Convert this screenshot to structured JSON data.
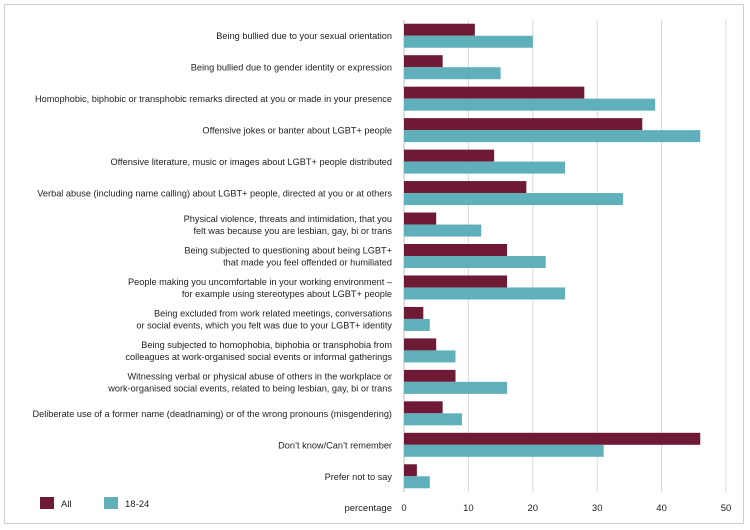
{
  "chart_data": {
    "type": "bar",
    "orientation": "horizontal",
    "categories": [
      [
        "Being bullied due to your sexual orientation"
      ],
      [
        "Being bullied due to gender identity or expression"
      ],
      [
        "Homophobic, biphobic or transphobic remarks directed at you or made in your presence"
      ],
      [
        "Offensive jokes or banter about LGBT+ people"
      ],
      [
        "Offensive literature, music or images about LGBT+ people distributed"
      ],
      [
        "Verbal abuse (including name calling) about LGBT+ people, directed at you or at others"
      ],
      [
        "Physical violence, threats and intimidation, that you",
        "felt was because you are lesbian, gay, bi or trans"
      ],
      [
        "Being subjected to questioning about being LGBT+",
        "that made you feel offended or humiliated"
      ],
      [
        "People making you uncomfortable in your working environment –",
        "for example using stereotypes about LGBT+ people"
      ],
      [
        "Being excluded from work related meetings, conversations",
        "or social events, which you felt was due to your LGBT+ identity"
      ],
      [
        "Being subjected to homophobia, biphobia or transphobia from",
        "colleagues at work-organised social events or informal gatherings"
      ],
      [
        "Witnessing verbal or physical abuse of others in the workplace or",
        "work-organised social events, related to being lesbian, gay, bi or trans"
      ],
      [
        "Deliberate use of a former name (deadnaming) or of the wrong pronouns (misgendering)"
      ],
      [
        "Don’t know/Can’t remember"
      ],
      [
        "Prefer not to say"
      ]
    ],
    "series": [
      {
        "name": "All",
        "color": "#6e1a35",
        "values": [
          11,
          6,
          28,
          37,
          14,
          19,
          5,
          16,
          16,
          3,
          5,
          8,
          6,
          46,
          2
        ]
      },
      {
        "name": "18-24",
        "color": "#5fb0bb",
        "values": [
          20,
          15,
          39,
          46,
          25,
          34,
          12,
          22,
          25,
          4,
          8,
          16,
          9,
          31,
          4
        ]
      }
    ],
    "xlabel": "percentage",
    "xlim": [
      0,
      50
    ],
    "xticks": [
      0,
      10,
      20,
      30,
      40,
      50
    ],
    "grid": true,
    "legend_position": "bottom-left"
  }
}
